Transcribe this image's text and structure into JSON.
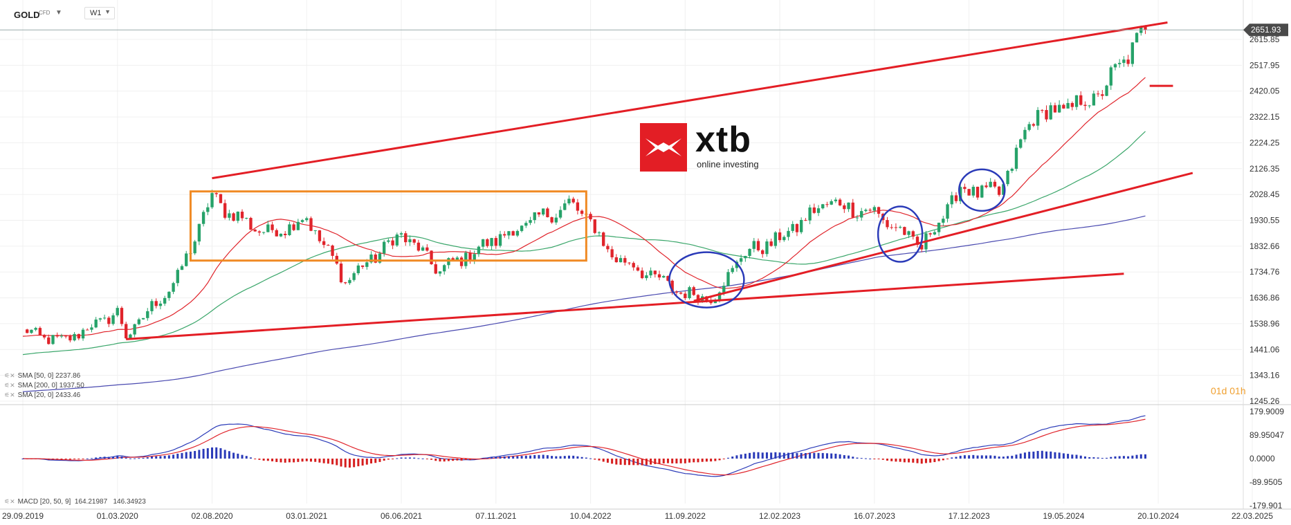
{
  "header": {
    "symbol": "GOLD",
    "symbol_sub": "CFD",
    "interval": "W1"
  },
  "logo": {
    "name": "xtb",
    "tagline": "online investing"
  },
  "timer": "01d 01h",
  "price_panel": {
    "y_ticks": [
      "2615.85",
      "2517.95",
      "2420.05",
      "2322.15",
      "2224.25",
      "2126.35",
      "2028.45",
      "1930.55",
      "1832.66",
      "1734.76",
      "1636.86",
      "1538.96",
      "1441.06",
      "1343.16",
      "1245.26"
    ],
    "current_price": "2651.93"
  },
  "macd_panel": {
    "y_ticks": [
      "179.9009",
      "89.95047",
      "0.0000",
      "-89.9505",
      "-179.901"
    ],
    "legend": "MACD [20, 50, 9]",
    "legend_values": [
      "164.21987",
      "146.34923"
    ]
  },
  "legend": [
    {
      "label": "SMA [50, 0]",
      "value": "2237.86"
    },
    {
      "label": "SMA [200, 0]",
      "value": "1937.50"
    },
    {
      "label": "SMA [20, 0]",
      "value": "2433.46"
    }
  ],
  "x_ticks": [
    "29.09.2019",
    "01.03.2020",
    "02.08.2020",
    "03.01.2021",
    "06.06.2021",
    "07.11.2021",
    "10.04.2022",
    "11.09.2022",
    "12.02.2023",
    "16.07.2023",
    "17.12.2023",
    "19.05.2024",
    "20.10.2024",
    "22.03.2025"
  ],
  "colors": {
    "up": "#26a269",
    "down": "#e0242b",
    "sma20": "#e0242b",
    "sma50": "#3aa66a",
    "sma200": "#4a4ab0",
    "annotation": "#e31e25",
    "box": "#f08a24",
    "circle": "#2a3ab8",
    "macd_pos": "#2a3ab8",
    "macd_neg": "#d61e1e"
  },
  "chart_data": {
    "type": "candlestick",
    "title": "GOLD CFD W1",
    "x_range": [
      "29.09.2019",
      "22.03.2025"
    ],
    "ylim": [
      1245.26,
      2651.93
    ],
    "last_price": 2651.93,
    "anchors": [
      {
        "date": "29.09.2019",
        "price": 1510
      },
      {
        "date": "01.12.2019",
        "price": 1470
      },
      {
        "date": "01.03.2020",
        "price": 1580
      },
      {
        "date": "15.03.2020",
        "price": 1490
      },
      {
        "date": "07.06.2020",
        "price": 1710
      },
      {
        "date": "02.08.2020",
        "price": 2020
      },
      {
        "date": "30.08.2020",
        "price": 1960
      },
      {
        "date": "01.11.2020",
        "price": 1880
      },
      {
        "date": "03.01.2021",
        "price": 1940
      },
      {
        "date": "07.03.2021",
        "price": 1700
      },
      {
        "date": "06.06.2021",
        "price": 1880
      },
      {
        "date": "08.08.2021",
        "price": 1740
      },
      {
        "date": "07.11.2021",
        "price": 1860
      },
      {
        "date": "06.03.2022",
        "price": 1990
      },
      {
        "date": "10.04.2022",
        "price": 1930
      },
      {
        "date": "08.05.2022",
        "price": 1810
      },
      {
        "date": "11.09.2022",
        "price": 1650
      },
      {
        "date": "30.10.2022",
        "price": 1640
      },
      {
        "date": "11.12.2022",
        "price": 1800
      },
      {
        "date": "12.02.2023",
        "price": 1860
      },
      {
        "date": "30.04.2023",
        "price": 2000
      },
      {
        "date": "16.07.2023",
        "price": 1960
      },
      {
        "date": "01.10.2023",
        "price": 1830
      },
      {
        "date": "03.12.2023",
        "price": 2050
      },
      {
        "date": "04.02.2024",
        "price": 2030
      },
      {
        "date": "31.03.2024",
        "price": 2330
      },
      {
        "date": "19.05.2024",
        "price": 2350
      },
      {
        "date": "14.07.2024",
        "price": 2400
      },
      {
        "date": "29.09.2024",
        "price": 2651.93
      }
    ],
    "series": [
      {
        "name": "SMA [20, 0]",
        "last": 2433.46
      },
      {
        "name": "SMA [50, 0]",
        "last": 2237.86
      },
      {
        "name": "SMA [200, 0]",
        "last": 1937.5
      }
    ],
    "macd": {
      "params": "MACD [20, 50, 9]",
      "macd": 164.21987,
      "signal": 146.34923,
      "ylim": [
        -179.901,
        179.9009
      ]
    }
  }
}
